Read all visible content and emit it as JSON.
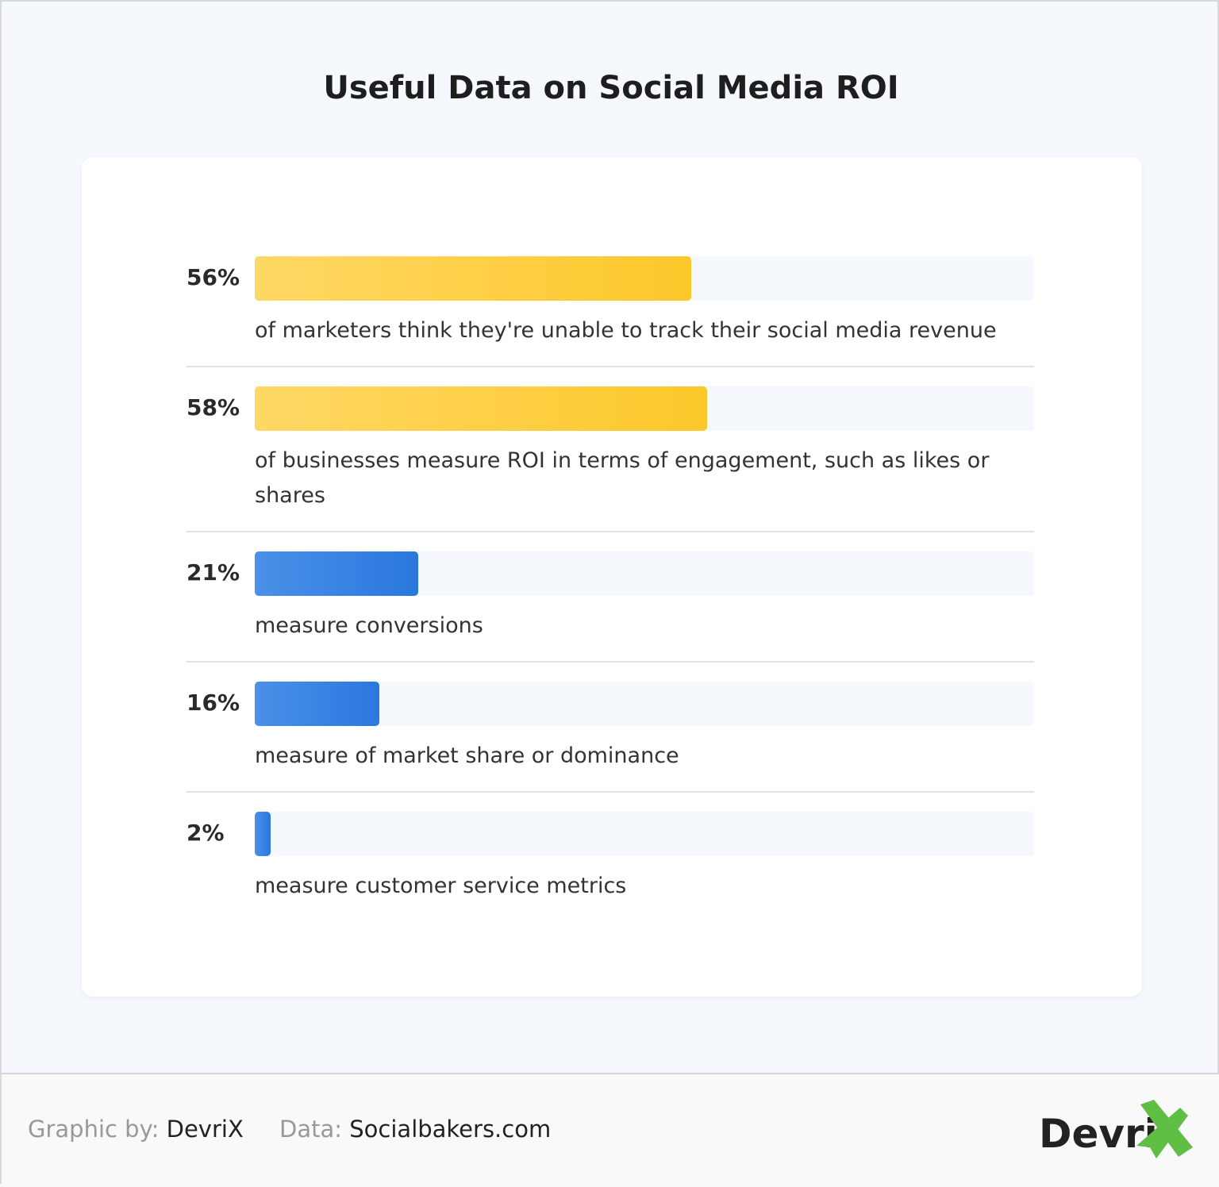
{
  "title": "Useful Data on Social Media ROI",
  "chart_data": {
    "type": "bar",
    "orientation": "horizontal",
    "title": "Useful Data on Social Media ROI",
    "unit": "%",
    "xlim": [
      0,
      100
    ],
    "items": [
      {
        "label": "56%",
        "value": 56,
        "description": "of marketers think they're unable to track their social media revenue",
        "color": "#fdc82f"
      },
      {
        "label": "58%",
        "value": 58,
        "description": "of businesses measure ROI in terms of engagement, such as likes or shares",
        "color": "#fdc82f"
      },
      {
        "label": "21%",
        "value": 21,
        "description": "measure conversions",
        "color": "#2f7fe0"
      },
      {
        "label": "16%",
        "value": 16,
        "description": "measure of market share or dominance",
        "color": "#2f7fe0"
      },
      {
        "label": "2%",
        "value": 2,
        "description": "measure customer service metrics",
        "color": "#2f7fe0"
      }
    ]
  },
  "footer": {
    "graphic_label": "Graphic by:",
    "graphic_value": "DevriX",
    "data_label": "Data:",
    "data_value": "Socialbakers.com",
    "logo_text": "DevriX",
    "logo_accent": "#5fbf45"
  }
}
